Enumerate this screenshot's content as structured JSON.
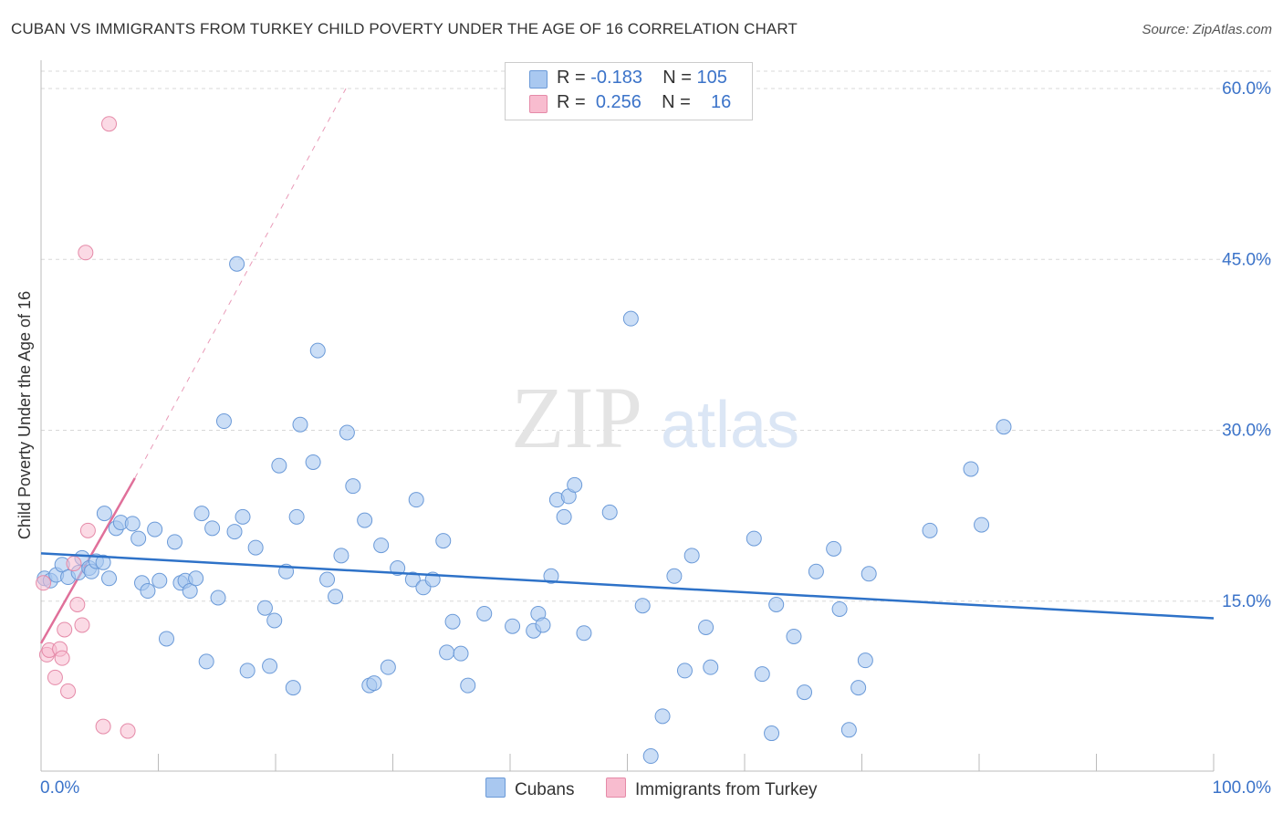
{
  "title": "CUBAN VS IMMIGRANTS FROM TURKEY CHILD POVERTY UNDER THE AGE OF 16 CORRELATION CHART",
  "source": "Source: ZipAtlas.com",
  "watermark": {
    "zip": "ZIP",
    "atlas": "atlas"
  },
  "legend": {
    "rows": [
      {
        "r_label": "R =",
        "r_value": "-0.183",
        "n_label": "N =",
        "n_value": "105",
        "color": "#a9c8f0"
      },
      {
        "r_label": "R =",
        "r_value": "0.256",
        "n_label": "N =",
        "n_value": "16",
        "color": "#f8bccf"
      }
    ]
  },
  "bottom_legend": {
    "cubans": "Cubans",
    "turkey": "Immigrants from Turkey"
  },
  "chart_data": {
    "type": "scatter",
    "ylabel": "Child Poverty Under the Age of 16",
    "xlabel": "",
    "x_tick_labels": [
      "0.0%",
      "100.0%"
    ],
    "y_tick_labels": [
      "15.0%",
      "30.0%",
      "45.0%",
      "60.0%"
    ],
    "y_ticks": [
      15,
      30,
      45,
      60
    ],
    "xlim": [
      0,
      100
    ],
    "ylim": [
      0,
      62
    ],
    "grid": true,
    "colors": {
      "cubans": "#a9c8f0",
      "cubans_stroke": "#6b9ad8",
      "cubans_line": "#2e72c8",
      "turkey": "#f8bccf",
      "turkey_stroke": "#e58aa8",
      "turkey_line": "#e0709a"
    },
    "series": [
      {
        "name": "Cubans",
        "trend": {
          "x0": 0,
          "y0": 19.2,
          "x1": 100,
          "y1": 13.5
        },
        "points": [
          [
            0.3,
            17.0
          ],
          [
            0.8,
            16.8
          ],
          [
            1.3,
            17.3
          ],
          [
            1.8,
            18.2
          ],
          [
            2.3,
            17.1
          ],
          [
            3.2,
            17.5
          ],
          [
            3.5,
            18.8
          ],
          [
            4.1,
            17.9
          ],
          [
            4.3,
            17.6
          ],
          [
            4.7,
            18.5
          ],
          [
            5.3,
            18.4
          ],
          [
            5.4,
            22.7
          ],
          [
            5.8,
            17.0
          ],
          [
            6.4,
            21.4
          ],
          [
            6.8,
            21.9
          ],
          [
            7.8,
            21.8
          ],
          [
            8.3,
            20.5
          ],
          [
            8.6,
            16.6
          ],
          [
            9.1,
            15.9
          ],
          [
            9.7,
            21.3
          ],
          [
            10.1,
            16.8
          ],
          [
            10.7,
            11.7
          ],
          [
            11.4,
            20.2
          ],
          [
            11.9,
            16.6
          ],
          [
            12.3,
            16.8
          ],
          [
            12.7,
            15.9
          ],
          [
            13.2,
            17.0
          ],
          [
            14.1,
            9.7
          ],
          [
            13.7,
            22.7
          ],
          [
            14.6,
            21.4
          ],
          [
            15.1,
            15.3
          ],
          [
            15.6,
            30.8
          ],
          [
            16.5,
            21.1
          ],
          [
            16.7,
            44.6
          ],
          [
            17.2,
            22.4
          ],
          [
            17.6,
            8.9
          ],
          [
            18.3,
            19.7
          ],
          [
            19.1,
            14.4
          ],
          [
            19.5,
            9.3
          ],
          [
            19.9,
            13.3
          ],
          [
            20.3,
            26.9
          ],
          [
            20.9,
            17.6
          ],
          [
            21.5,
            7.4
          ],
          [
            21.8,
            22.4
          ],
          [
            22.1,
            30.5
          ],
          [
            23.2,
            27.2
          ],
          [
            23.6,
            37.0
          ],
          [
            24.4,
            16.9
          ],
          [
            25.1,
            15.4
          ],
          [
            25.6,
            19.0
          ],
          [
            26.1,
            29.8
          ],
          [
            26.6,
            25.1
          ],
          [
            27.6,
            22.1
          ],
          [
            28.0,
            7.6
          ],
          [
            28.4,
            7.8
          ],
          [
            29.0,
            19.9
          ],
          [
            29.6,
            9.2
          ],
          [
            30.4,
            17.9
          ],
          [
            31.7,
            16.9
          ],
          [
            32.0,
            23.9
          ],
          [
            32.6,
            16.2
          ],
          [
            33.4,
            16.9
          ],
          [
            34.3,
            20.3
          ],
          [
            34.6,
            10.5
          ],
          [
            35.1,
            13.2
          ],
          [
            35.8,
            10.4
          ],
          [
            36.4,
            7.6
          ],
          [
            37.8,
            13.9
          ],
          [
            40.2,
            12.8
          ],
          [
            42.0,
            12.4
          ],
          [
            42.4,
            13.9
          ],
          [
            42.8,
            12.9
          ],
          [
            43.5,
            17.2
          ],
          [
            44.0,
            23.9
          ],
          [
            44.6,
            22.4
          ],
          [
            45.0,
            24.2
          ],
          [
            45.5,
            25.2
          ],
          [
            46.3,
            12.2
          ],
          [
            48.5,
            22.8
          ],
          [
            50.3,
            39.8
          ],
          [
            51.3,
            14.6
          ],
          [
            52.0,
            1.4
          ],
          [
            53.0,
            4.9
          ],
          [
            54.0,
            17.2
          ],
          [
            54.9,
            8.9
          ],
          [
            55.5,
            19.0
          ],
          [
            56.7,
            12.7
          ],
          [
            57.1,
            9.2
          ],
          [
            60.8,
            20.5
          ],
          [
            61.5,
            8.6
          ],
          [
            62.3,
            3.4
          ],
          [
            62.7,
            14.7
          ],
          [
            64.2,
            11.9
          ],
          [
            65.1,
            7.0
          ],
          [
            66.1,
            17.6
          ],
          [
            67.6,
            19.6
          ],
          [
            68.1,
            14.3
          ],
          [
            68.9,
            3.7
          ],
          [
            69.7,
            7.4
          ],
          [
            70.3,
            9.8
          ],
          [
            70.6,
            17.4
          ],
          [
            75.8,
            21.2
          ],
          [
            79.3,
            26.6
          ],
          [
            80.2,
            21.7
          ],
          [
            82.1,
            30.3
          ]
        ]
      },
      {
        "name": "Immigrants from Turkey",
        "trend": {
          "x0": 0,
          "y0": 11.3,
          "x1": 8.0,
          "y1": 25.8,
          "ext_x1": 26.0,
          "ext_y1": 60.0
        },
        "points": [
          [
            0.2,
            16.6
          ],
          [
            0.5,
            10.3
          ],
          [
            0.7,
            10.7
          ],
          [
            1.2,
            8.3
          ],
          [
            1.6,
            10.8
          ],
          [
            1.8,
            10.0
          ],
          [
            2.0,
            12.5
          ],
          [
            2.3,
            7.1
          ],
          [
            2.8,
            18.3
          ],
          [
            3.1,
            14.7
          ],
          [
            3.5,
            12.9
          ],
          [
            3.8,
            45.6
          ],
          [
            4.0,
            21.2
          ],
          [
            5.3,
            4.0
          ],
          [
            5.8,
            56.9
          ],
          [
            7.4,
            3.6
          ]
        ]
      }
    ]
  }
}
